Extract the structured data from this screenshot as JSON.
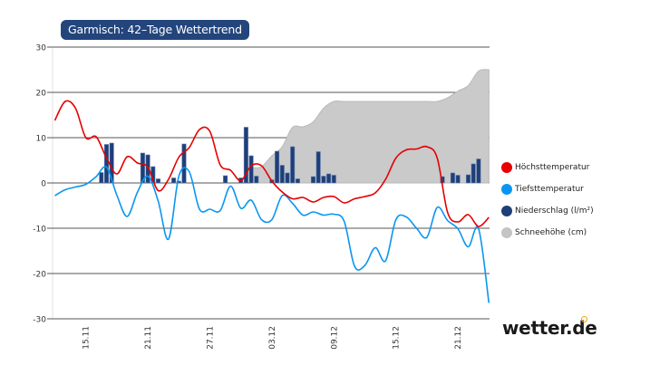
{
  "title": "Garmisch: 42–Tage Wettertrend",
  "logo": "wetter.de",
  "colors": {
    "title_bg": "#23457c",
    "max_temp": "#e60000",
    "min_temp": "#0a96f0",
    "precip": "#1f3f78",
    "snow": "#cacaca",
    "logo_accent": "#f5a800"
  },
  "legend": [
    {
      "label": "Höchsttemperatur",
      "color": "#e60000"
    },
    {
      "label": "Tiefsttemperatur",
      "color": "#0a96f0"
    },
    {
      "label": "Niederschlag (l/m²)",
      "color": "#1f3f78"
    },
    {
      "label": "Schneehöhe (cm)",
      "color": "#c4c4c4"
    }
  ],
  "chart_data": {
    "type": "line",
    "title": "Garmisch: 42–Tage Wettertrend",
    "ylim": [
      -30,
      30
    ],
    "yticks": [
      "30",
      "20",
      "10",
      "0",
      "-10",
      "-20",
      "-30"
    ],
    "xticks": [
      "15.11",
      "21.11",
      "27.11",
      "03.12",
      "09.12",
      "15.12",
      "21.12"
    ],
    "xlim": [
      "11.11 19:00",
      "24.12 02:00"
    ],
    "grid": true,
    "legend_position": "right",
    "dates": [
      "12.11",
      "13.11",
      "14.11",
      "15.11",
      "16.11",
      "17.11",
      "18.11",
      "19.11",
      "20.11",
      "21.11",
      "22.11",
      "23.11",
      "24.11",
      "25.11",
      "26.11",
      "27.11",
      "28.11",
      "29.11",
      "30.11",
      "01.12",
      "02.12",
      "03.12",
      "04.12",
      "05.12",
      "06.12",
      "07.12",
      "08.12",
      "09.12",
      "10.12",
      "11.12",
      "12.12",
      "13.12",
      "14.12",
      "15.12",
      "16.12",
      "17.12",
      "18.12",
      "19.12",
      "20.12",
      "21.12",
      "22.12",
      "23.12",
      "24.12"
    ],
    "series": [
      {
        "name": "Höchsttemperatur",
        "type": "line",
        "values": [
          13.8,
          18,
          16.5,
          10,
          10.2,
          5.5,
          2,
          5.8,
          4.4,
          3.5,
          -1.7,
          0.8,
          5.7,
          7.8,
          11.8,
          11.4,
          4,
          2.8,
          0.5,
          3.8,
          3.8,
          0.4,
          -2,
          -3.5,
          -3.2,
          -4.2,
          -3.2,
          -3,
          -4.4,
          -3.5,
          -3,
          -2.2,
          0.8,
          5.5,
          7.3,
          7.5,
          8,
          5.5,
          -6.5,
          -8.6,
          -7,
          -9.6,
          -7.6
        ]
      },
      {
        "name": "Tiefsttemperatur",
        "type": "line",
        "values": [
          -2.8,
          -1.5,
          -0.9,
          -0.3,
          1.4,
          3.5,
          -2.7,
          -7.4,
          -2,
          1.5,
          -4,
          -12.4,
          1.5,
          2.5,
          -5.8,
          -5.8,
          -6.1,
          -0.7,
          -5.6,
          -3.8,
          -8.1,
          -8.1,
          -2.8,
          -4.5,
          -7.1,
          -6.4,
          -7.1,
          -6.9,
          -8.5,
          -18.4,
          -18.2,
          -14.3,
          -17.2,
          -8.1,
          -7.5,
          -10,
          -12,
          -5.4,
          -8.3,
          -10.1,
          -14.1,
          -10.1,
          -26.5
        ]
      },
      {
        "name": "Schneehöhe (cm)",
        "type": "area",
        "values": [
          0,
          0,
          0,
          0,
          0,
          0,
          0,
          0,
          0,
          0,
          0,
          0,
          0,
          0,
          0,
          0,
          0,
          0,
          0,
          3.4,
          3.6,
          6,
          8,
          12.3,
          12.4,
          13.5,
          16.5,
          18,
          18,
          18,
          18,
          18,
          18,
          18,
          18,
          18,
          18,
          18,
          18.8,
          20.3,
          21.5,
          24.7,
          25
        ]
      },
      {
        "name": "Niederschlag (l/m²)",
        "type": "bar",
        "points": [
          [
            "16.11 12:00",
            2.3
          ],
          [
            "17.11 00:00",
            8.5
          ],
          [
            "17.11 12:00",
            8.8
          ],
          [
            "20.11 12:00",
            6.6
          ],
          [
            "21.11 00:00",
            6.2
          ],
          [
            "21.11 12:00",
            3.6
          ],
          [
            "22.11 00:00",
            0.9
          ],
          [
            "23.11 12:00",
            1.1
          ],
          [
            "24.11 00:00",
            0.4
          ],
          [
            "24.11 12:00",
            8.6
          ],
          [
            "28.11 12:00",
            1.6
          ],
          [
            "30.11 00:00",
            1.1
          ],
          [
            "30.11 12:00",
            12.3
          ],
          [
            "01.12 00:00",
            6.0
          ],
          [
            "01.12 12:00",
            1.5
          ],
          [
            "03.12 00:00",
            0.7
          ],
          [
            "03.12 12:00",
            7.0
          ],
          [
            "04.12 00:00",
            3.9
          ],
          [
            "04.12 12:00",
            2.2
          ],
          [
            "05.12 00:00",
            8.0
          ],
          [
            "05.12 12:00",
            0.9
          ],
          [
            "07.12 00:00",
            1.4
          ],
          [
            "07.12 12:00",
            6.9
          ],
          [
            "08.12 00:00",
            1.5
          ],
          [
            "08.12 12:00",
            2.0
          ],
          [
            "09.12 00:00",
            1.7
          ],
          [
            "19.12 12:00",
            1.4
          ],
          [
            "20.12 12:00",
            2.2
          ],
          [
            "21.12 00:00",
            1.7
          ],
          [
            "22.12 00:00",
            1.8
          ],
          [
            "22.12 12:00",
            4.2
          ],
          [
            "23.12 00:00",
            5.3
          ]
        ]
      }
    ]
  }
}
